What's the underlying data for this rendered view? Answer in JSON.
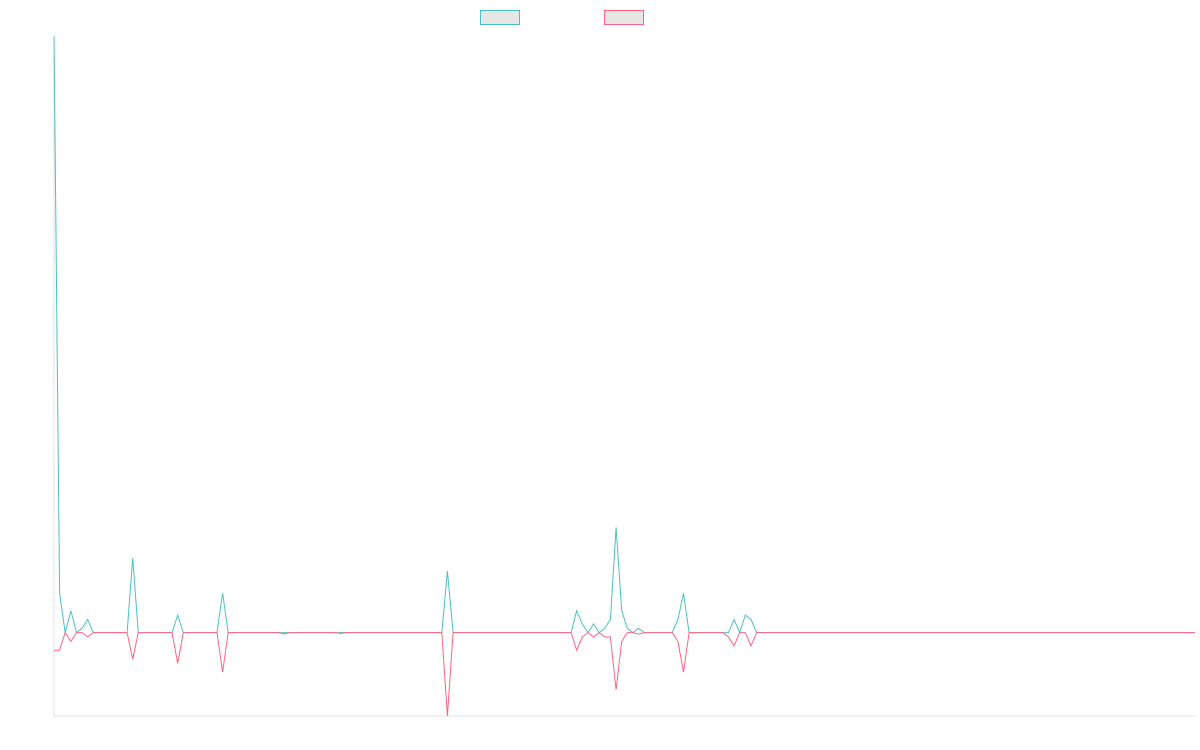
{
  "chart_data": {
    "type": "line",
    "title": "",
    "xlabel": "",
    "ylabel": "",
    "legend_position": "top-center",
    "grid": false,
    "x_range": [
      0,
      203
    ],
    "ylim": [
      -19,
      136
    ],
    "series": [
      {
        "color": "#4bc0c0",
        "fill": "#e6e6e6",
        "points": [
          [
            0,
            136
          ],
          [
            1,
            9
          ],
          [
            2,
            0
          ],
          [
            3,
            5
          ],
          [
            4,
            0
          ],
          [
            5,
            1
          ],
          [
            6,
            3
          ],
          [
            7,
            0
          ],
          [
            8,
            0
          ],
          [
            9,
            0
          ],
          [
            10,
            0
          ],
          [
            11,
            0
          ],
          [
            12,
            0
          ],
          [
            13,
            0
          ],
          [
            14,
            17
          ],
          [
            15,
            0
          ],
          [
            16,
            0
          ],
          [
            17,
            0
          ],
          [
            18,
            0
          ],
          [
            19,
            0
          ],
          [
            20,
            0
          ],
          [
            21,
            0
          ],
          [
            22,
            4
          ],
          [
            23,
            0
          ],
          [
            24,
            0
          ],
          [
            25,
            0
          ],
          [
            26,
            0
          ],
          [
            27,
            0
          ],
          [
            28,
            0
          ],
          [
            29,
            0
          ],
          [
            30,
            9
          ],
          [
            31,
            0
          ],
          [
            34,
            0
          ],
          [
            69,
            0
          ],
          [
            70,
            14
          ],
          [
            71,
            0
          ],
          [
            92,
            0
          ],
          [
            93,
            5
          ],
          [
            94,
            2
          ],
          [
            95,
            0
          ],
          [
            96,
            2
          ],
          [
            97,
            0
          ],
          [
            98,
            1
          ],
          [
            99,
            3
          ],
          [
            100,
            24
          ],
          [
            101,
            5
          ],
          [
            102,
            1
          ],
          [
            103,
            0
          ],
          [
            104,
            1
          ],
          [
            105,
            0
          ],
          [
            110,
            0
          ],
          [
            111,
            3
          ],
          [
            112,
            9
          ],
          [
            113,
            0
          ],
          [
            120,
            0
          ],
          [
            121,
            3
          ],
          [
            122,
            0
          ],
          [
            123,
            4
          ],
          [
            124,
            3
          ],
          [
            125,
            0
          ],
          [
            203,
            0
          ]
        ]
      },
      {
        "color": "#ff6384",
        "fill": "#e6e6e6",
        "points": [
          [
            0,
            -4
          ],
          [
            1,
            -4
          ],
          [
            2,
            0
          ],
          [
            3,
            -2
          ],
          [
            4,
            0
          ],
          [
            5,
            0
          ],
          [
            6,
            -1
          ],
          [
            7,
            0
          ],
          [
            8,
            0
          ],
          [
            9,
            0
          ],
          [
            10,
            0
          ],
          [
            11,
            0
          ],
          [
            12,
            0
          ],
          [
            13,
            0
          ],
          [
            14,
            -6
          ],
          [
            15,
            0
          ],
          [
            16,
            0
          ],
          [
            17,
            0
          ],
          [
            18,
            0
          ],
          [
            19,
            0
          ],
          [
            20,
            0
          ],
          [
            21,
            0
          ],
          [
            22,
            -7
          ],
          [
            23,
            0
          ],
          [
            24,
            0
          ],
          [
            25,
            0
          ],
          [
            26,
            0
          ],
          [
            27,
            0
          ],
          [
            28,
            0
          ],
          [
            29,
            0
          ],
          [
            30,
            -9
          ],
          [
            31,
            0
          ],
          [
            34,
            0
          ],
          [
            40,
            0
          ],
          [
            41,
            -0.3
          ],
          [
            42,
            0
          ],
          [
            50,
            0
          ],
          [
            51,
            -0.2
          ],
          [
            52,
            0
          ],
          [
            69,
            0
          ],
          [
            70,
            -19
          ],
          [
            71,
            0
          ],
          [
            92,
            0
          ],
          [
            93,
            -4
          ],
          [
            94,
            -1
          ],
          [
            95,
            0
          ],
          [
            96,
            -1
          ],
          [
            97,
            0
          ],
          [
            98,
            -1
          ],
          [
            99,
            -1
          ],
          [
            100,
            -13
          ],
          [
            101,
            -2
          ],
          [
            102,
            0
          ],
          [
            103,
            0
          ],
          [
            104,
            -0.3
          ],
          [
            105,
            0
          ],
          [
            110,
            0
          ],
          [
            111,
            -2
          ],
          [
            112,
            -9
          ],
          [
            113,
            0
          ],
          [
            119,
            0
          ],
          [
            120,
            -1
          ],
          [
            121,
            -3
          ],
          [
            122,
            0
          ],
          [
            123,
            0
          ],
          [
            124,
            -3
          ],
          [
            125,
            0
          ],
          [
            203,
            0
          ]
        ]
      }
    ]
  }
}
